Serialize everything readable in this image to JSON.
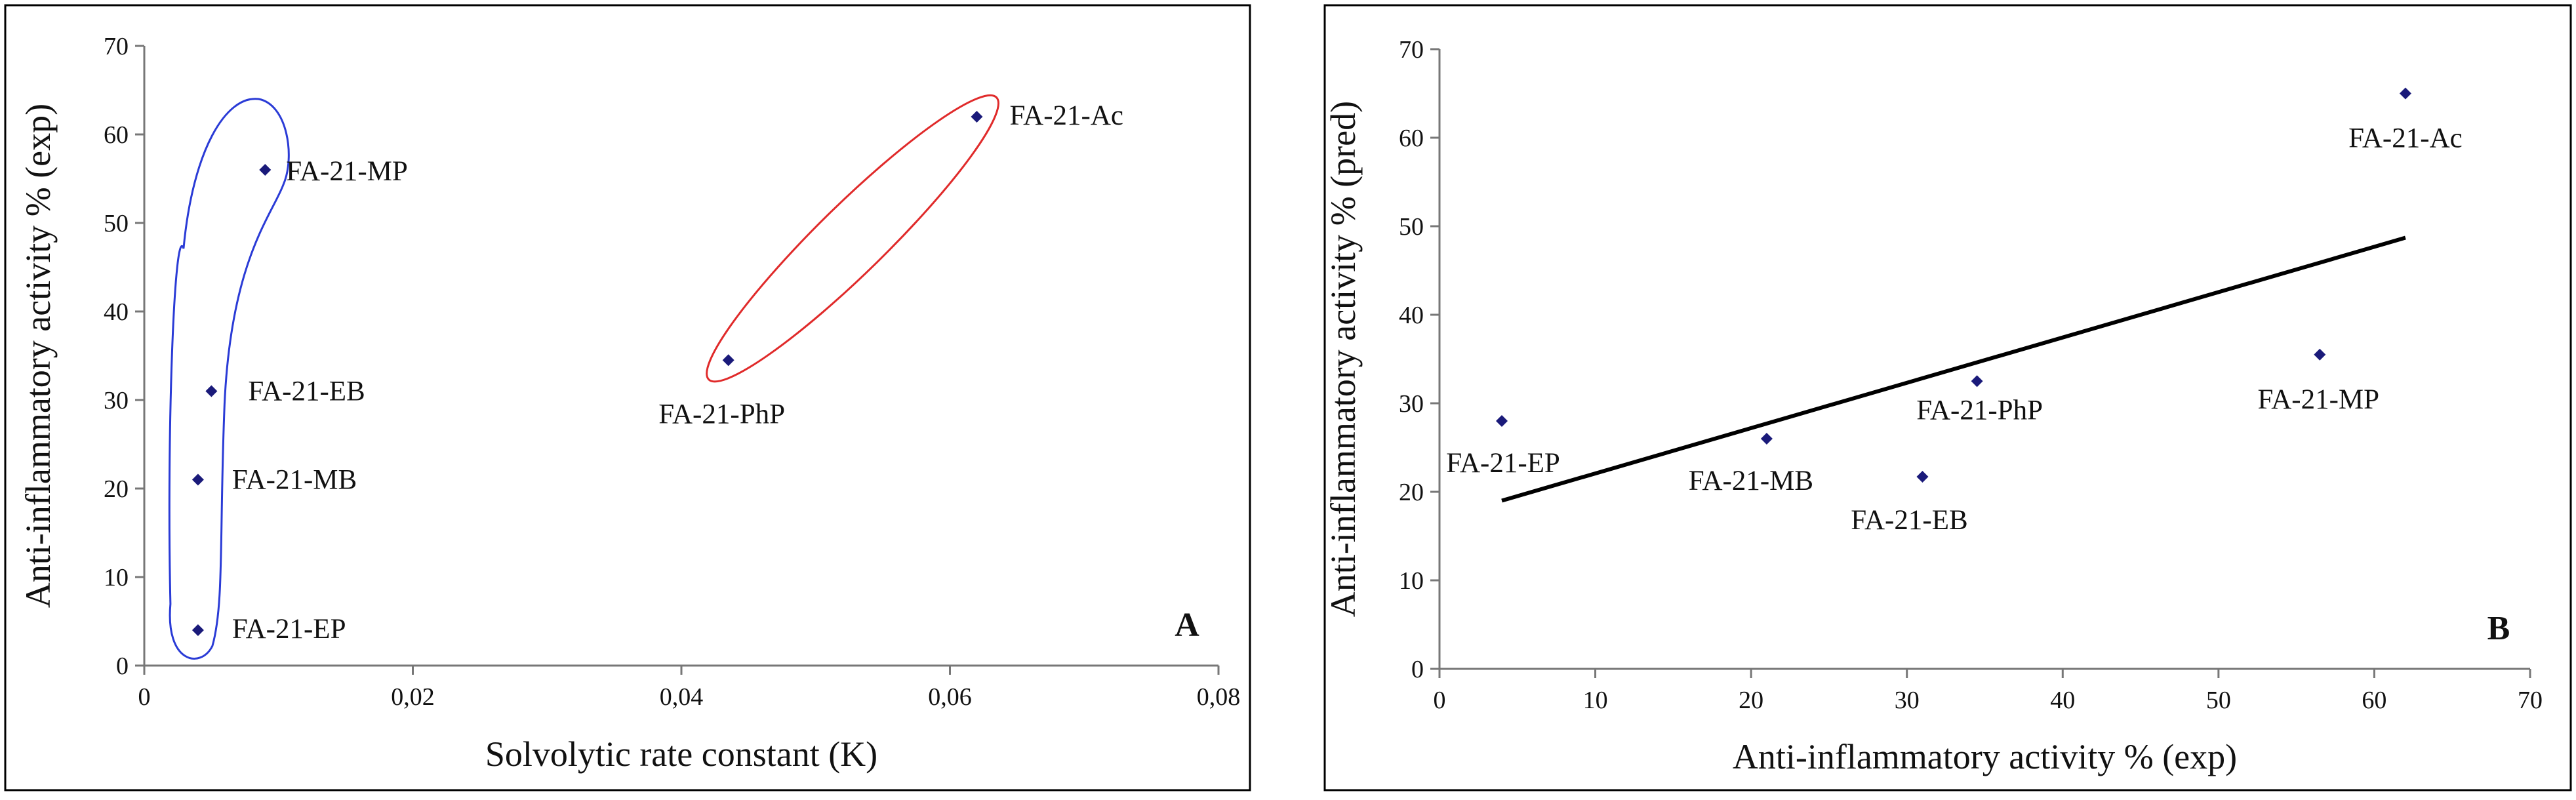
{
  "chart_data": [
    {
      "id": "A",
      "type": "scatter",
      "panel_label": "A",
      "xlabel": "Solvolytic rate constant (K)",
      "ylabel": "Anti-inflammatory activity % (exp)",
      "xlim": [
        0,
        0.08
      ],
      "ylim": [
        0,
        70
      ],
      "xticks": [
        0,
        0.02,
        0.04,
        0.06,
        0.08
      ],
      "xtick_labels": [
        "0",
        "0,02",
        "0,04",
        "0,06",
        "0,08"
      ],
      "yticks": [
        0,
        10,
        20,
        30,
        40,
        50,
        60,
        70
      ],
      "ytick_labels": [
        "0",
        "10",
        "20",
        "30",
        "40",
        "50",
        "60",
        "70"
      ],
      "grid": false,
      "marker_color": "#1a1a7a",
      "points": [
        {
          "label": "FA-21-MP",
          "x": 0.009,
          "y": 56
        },
        {
          "label": "FA-21-EB",
          "x": 0.005,
          "y": 31
        },
        {
          "label": "FA-21-MB",
          "x": 0.004,
          "y": 21
        },
        {
          "label": "FA-21-EP",
          "x": 0.004,
          "y": 4
        },
        {
          "label": "FA-21-Ac",
          "x": 0.062,
          "y": 62
        },
        {
          "label": "FA-21-PhP",
          "x": 0.0435,
          "y": 34.5
        }
      ],
      "groups": [
        {
          "members": [
            "FA-21-MP",
            "FA-21-EB",
            "FA-21-MB",
            "FA-21-EP"
          ],
          "outline_color": "#2a3bd6"
        },
        {
          "members": [
            "FA-21-Ac",
            "FA-21-PhP"
          ],
          "outline_color": "#e02a2a"
        }
      ]
    },
    {
      "id": "B",
      "type": "scatter",
      "panel_label": "B",
      "xlabel": "Anti-inflammatory activity % (exp)",
      "ylabel": "Anti-inflammatory activity % (pred)",
      "xlim": [
        0,
        70
      ],
      "ylim": [
        0,
        70
      ],
      "xticks": [
        0,
        10,
        20,
        30,
        40,
        50,
        60,
        70
      ],
      "xtick_labels": [
        "0",
        "10",
        "20",
        "30",
        "40",
        "50",
        "60",
        "70"
      ],
      "yticks": [
        0,
        10,
        20,
        30,
        40,
        50,
        60,
        70
      ],
      "ytick_labels": [
        "0",
        "10",
        "20",
        "30",
        "40",
        "50",
        "60",
        "70"
      ],
      "grid": false,
      "marker_color": "#1a1a7a",
      "points": [
        {
          "label": "FA-21-Ac",
          "x": 62,
          "y": 65
        },
        {
          "label": "FA-21-MP",
          "x": 56.5,
          "y": 35.5
        },
        {
          "label": "FA-21-PhP",
          "x": 34.5,
          "y": 32.5
        },
        {
          "label": "FA-21-EP",
          "x": 4,
          "y": 28
        },
        {
          "label": "FA-21-MB",
          "x": 21,
          "y": 26
        },
        {
          "label": "FA-21-EB",
          "x": 31,
          "y": 21.7
        }
      ],
      "trendline": {
        "x": [
          4,
          62
        ],
        "y": [
          19,
          48.7
        ]
      }
    }
  ]
}
